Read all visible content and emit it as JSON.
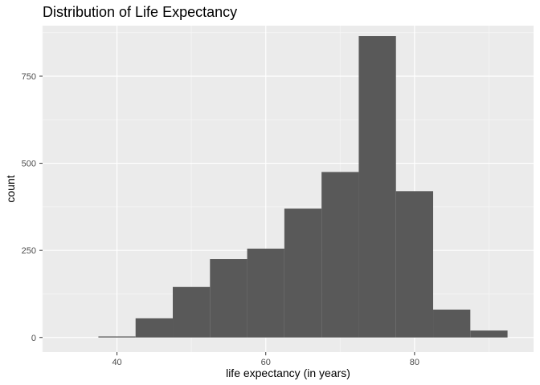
{
  "chart_data": {
    "type": "bar",
    "title": "Distribution of Life Expectancy",
    "xlabel": "life expectancy (in years)",
    "ylabel": "count",
    "xlim": [
      30,
      96
    ],
    "ylim": [
      -42,
      895
    ],
    "x_ticks": [
      40,
      60,
      80
    ],
    "y_ticks": [
      0,
      250,
      500,
      750
    ],
    "grid": true,
    "legend": "none",
    "bins": [
      {
        "x_start": 37.5,
        "x_end": 42.5,
        "count": 3
      },
      {
        "x_start": 42.5,
        "x_end": 47.5,
        "count": 55
      },
      {
        "x_start": 47.5,
        "x_end": 52.5,
        "count": 145
      },
      {
        "x_start": 52.5,
        "x_end": 57.5,
        "count": 225
      },
      {
        "x_start": 57.5,
        "x_end": 62.5,
        "count": 255
      },
      {
        "x_start": 62.5,
        "x_end": 67.5,
        "count": 370
      },
      {
        "x_start": 67.5,
        "x_end": 72.5,
        "count": 475
      },
      {
        "x_start": 72.5,
        "x_end": 77.5,
        "count": 865
      },
      {
        "x_start": 77.5,
        "x_end": 82.5,
        "count": 420
      },
      {
        "x_start": 82.5,
        "x_end": 87.5,
        "count": 80
      },
      {
        "x_start": 87.5,
        "x_end": 92.5,
        "count": 20
      }
    ],
    "colors": {
      "bar_fill": "#595959",
      "panel_background": "#ebebeb",
      "grid_major": "#ffffff",
      "grid_minor": "#f5f5f5",
      "tick_text": "#4d4d4d",
      "axis_tick": "#333333"
    }
  }
}
